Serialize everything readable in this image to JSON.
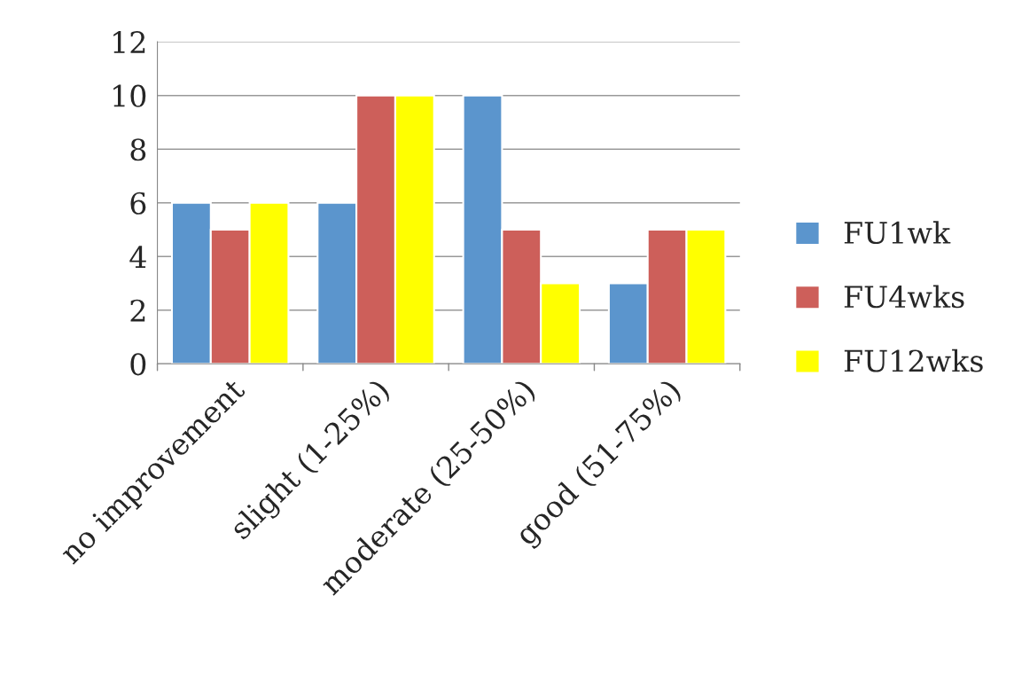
{
  "chart_data": {
    "type": "bar",
    "categories": [
      "no improvement",
      "slight (1-25%)",
      "moderate (25-50%)",
      "good (51-75%)"
    ],
    "series": [
      {
        "name": "FU1wk",
        "color": "#5b95cd",
        "values": [
          6,
          6,
          10,
          3
        ]
      },
      {
        "name": "FU4wks",
        "color": "#cd5f5a",
        "values": [
          5,
          10,
          5,
          5
        ]
      },
      {
        "name": "FU12wks",
        "color": "#ffff00",
        "values": [
          6,
          10,
          3,
          5
        ]
      }
    ],
    "ylim": [
      0,
      12
    ],
    "yticks": [
      0,
      2,
      4,
      6,
      8,
      10,
      12
    ],
    "grid": "y",
    "legend": "right"
  }
}
